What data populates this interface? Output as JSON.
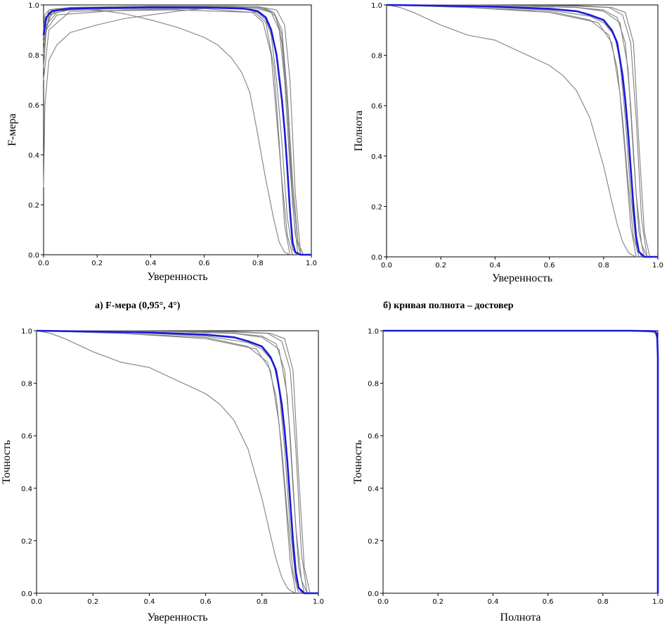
{
  "figure": {
    "captions": [
      "а) F-мера (0,95°, 4°)",
      "б) кривая полнота – достовер"
    ]
  },
  "chart_data": [
    {
      "type": "line",
      "panel": "top-left",
      "xlabel": "Уверенность",
      "ylabel": "F-мера",
      "xlim": [
        0,
        1
      ],
      "ylim": [
        0,
        1
      ],
      "xticks": [
        "0.0",
        "0.2",
        "0.4",
        "0.6",
        "0.8",
        "1.0"
      ],
      "yticks": [
        "0.0",
        "0.2",
        "0.4",
        "0.6",
        "0.8",
        "1.0"
      ],
      "grid": false,
      "mean_color": "#1a1adb",
      "run_color": "#808080",
      "series": [
        {
          "role": "mean",
          "x": [
            0,
            0.01,
            0.03,
            0.06,
            0.1,
            0.2,
            0.4,
            0.6,
            0.75,
            0.8,
            0.83,
            0.85,
            0.87,
            0.89,
            0.9,
            0.91,
            0.92,
            0.93,
            0.94,
            0.96,
            1.0
          ],
          "y": [
            0.88,
            0.95,
            0.975,
            0.98,
            0.985,
            0.988,
            0.99,
            0.99,
            0.985,
            0.975,
            0.95,
            0.9,
            0.8,
            0.62,
            0.5,
            0.35,
            0.18,
            0.05,
            0.01,
            0,
            0
          ]
        },
        {
          "role": "run",
          "x": [
            0,
            0.01,
            0.05,
            0.1,
            0.3,
            0.6,
            0.75,
            0.8,
            0.83,
            0.85,
            0.87,
            0.89,
            0.91,
            0.93,
            0.95
          ],
          "y": [
            0.8,
            0.92,
            0.97,
            0.98,
            0.985,
            0.988,
            0.985,
            0.97,
            0.94,
            0.88,
            0.7,
            0.45,
            0.15,
            0.02,
            0
          ]
        },
        {
          "role": "run",
          "x": [
            0,
            0.02,
            0.05,
            0.1,
            0.4,
            0.7,
            0.8,
            0.84,
            0.87,
            0.89,
            0.91,
            0.93,
            0.95,
            0.97
          ],
          "y": [
            0.85,
            0.95,
            0.98,
            0.99,
            0.993,
            0.993,
            0.99,
            0.98,
            0.95,
            0.85,
            0.6,
            0.25,
            0.05,
            0
          ]
        },
        {
          "role": "run",
          "x": [
            0,
            0.02,
            0.1,
            0.4,
            0.7,
            0.82,
            0.86,
            0.89,
            0.91,
            0.93,
            0.95,
            0.97
          ],
          "y": [
            0.9,
            0.97,
            0.99,
            0.995,
            0.995,
            0.99,
            0.97,
            0.9,
            0.65,
            0.3,
            0.05,
            0
          ]
        },
        {
          "role": "run",
          "x": [
            0,
            0.01,
            0.05,
            0.3,
            0.6,
            0.78,
            0.82,
            0.85,
            0.87,
            0.89,
            0.91,
            0.93
          ],
          "y": [
            0.75,
            0.9,
            0.96,
            0.98,
            0.985,
            0.97,
            0.93,
            0.8,
            0.55,
            0.3,
            0.08,
            0
          ]
        },
        {
          "role": "run",
          "x": [
            0,
            0.02,
            0.1,
            0.5,
            0.8,
            0.85,
            0.88,
            0.9,
            0.92,
            0.94,
            0.96
          ],
          "y": [
            0.82,
            0.96,
            0.985,
            0.99,
            0.985,
            0.97,
            0.9,
            0.7,
            0.35,
            0.08,
            0
          ]
        },
        {
          "role": "run",
          "x": [
            0,
            0.03,
            0.1,
            0.5,
            0.8,
            0.86,
            0.89,
            0.91,
            0.93,
            0.95
          ],
          "y": [
            0.87,
            0.97,
            0.99,
            0.993,
            0.99,
            0.97,
            0.88,
            0.6,
            0.2,
            0
          ]
        },
        {
          "role": "run",
          "x": [
            0,
            0.02,
            0.1,
            0.5,
            0.79,
            0.83,
            0.86,
            0.88,
            0.9,
            0.92
          ],
          "y": [
            0.7,
            0.9,
            0.975,
            0.98,
            0.97,
            0.93,
            0.75,
            0.45,
            0.12,
            0
          ]
        },
        {
          "role": "run",
          "x": [
            0,
            0.02,
            0.1,
            0.4,
            0.8,
            0.87,
            0.9,
            0.92,
            0.94,
            0.96
          ],
          "y": [
            0.9,
            0.98,
            0.99,
            0.995,
            0.993,
            0.98,
            0.92,
            0.7,
            0.25,
            0
          ]
        },
        {
          "role": "run",
          "x": [
            0,
            0.005,
            0.02,
            0.05,
            0.1,
            0.2,
            0.3,
            0.4,
            0.5,
            0.55,
            0.6,
            0.65,
            0.7,
            0.73
          ],
          "y": [
            0.27,
            0.6,
            0.78,
            0.84,
            0.89,
            0.92,
            0.945,
            0.96,
            0.975,
            0.98,
            0.985,
            0.99,
            0.99,
            0.99
          ]
        },
        {
          "role": "run",
          "x": [
            0,
            0.005,
            0.02,
            0.05,
            0.1,
            0.2,
            0.3,
            0.4,
            0.5,
            0.6,
            0.65,
            0.7,
            0.74,
            0.77,
            0.8,
            0.83,
            0.86,
            0.88,
            0.9,
            0.92
          ],
          "y": [
            0.9,
            0.96,
            0.98,
            0.985,
            0.985,
            0.98,
            0.965,
            0.94,
            0.91,
            0.87,
            0.84,
            0.79,
            0.73,
            0.65,
            0.48,
            0.3,
            0.14,
            0.05,
            0.01,
            0
          ]
        }
      ]
    },
    {
      "type": "line",
      "panel": "top-right",
      "xlabel": "Уверенность",
      "ylabel": "Полнота",
      "xlim": [
        0,
        1
      ],
      "ylim": [
        0,
        1
      ],
      "xticks": [
        "0.0",
        "0.2",
        "0.4",
        "0.6",
        "0.8",
        "1.0"
      ],
      "yticks": [
        "0.0",
        "0.2",
        "0.4",
        "0.6",
        "0.8",
        "1.0"
      ],
      "grid": false,
      "mean_color": "#1a1adb",
      "run_color": "#808080",
      "series": [
        {
          "role": "mean",
          "x": [
            0,
            0.2,
            0.4,
            0.6,
            0.7,
            0.75,
            0.8,
            0.83,
            0.85,
            0.87,
            0.88,
            0.89,
            0.9,
            0.91,
            0.92,
            0.93,
            0.95,
            1.0
          ],
          "y": [
            1.0,
            0.997,
            0.993,
            0.985,
            0.975,
            0.96,
            0.94,
            0.9,
            0.85,
            0.72,
            0.62,
            0.5,
            0.35,
            0.2,
            0.08,
            0.02,
            0,
            0
          ]
        },
        {
          "role": "run",
          "x": [
            0,
            0.3,
            0.6,
            0.75,
            0.8,
            0.84,
            0.86,
            0.88,
            0.9,
            0.92,
            0.94
          ],
          "y": [
            1.0,
            0.995,
            0.98,
            0.955,
            0.93,
            0.88,
            0.78,
            0.55,
            0.25,
            0.05,
            0
          ]
        },
        {
          "role": "run",
          "x": [
            0,
            0.4,
            0.7,
            0.8,
            0.85,
            0.88,
            0.9,
            0.92,
            0.94,
            0.96
          ],
          "y": [
            1.0,
            0.998,
            0.99,
            0.98,
            0.95,
            0.85,
            0.6,
            0.25,
            0.05,
            0
          ]
        },
        {
          "role": "run",
          "x": [
            0,
            0.4,
            0.7,
            0.82,
            0.87,
            0.9,
            0.92,
            0.94,
            0.96
          ],
          "y": [
            1.0,
            0.999,
            0.995,
            0.99,
            0.96,
            0.85,
            0.55,
            0.15,
            0
          ]
        },
        {
          "role": "run",
          "x": [
            0,
            0.3,
            0.6,
            0.75,
            0.82,
            0.85,
            0.87,
            0.89,
            0.91,
            0.93
          ],
          "y": [
            1.0,
            0.99,
            0.975,
            0.94,
            0.88,
            0.75,
            0.55,
            0.3,
            0.08,
            0
          ]
        },
        {
          "role": "run",
          "x": [
            0,
            0.4,
            0.7,
            0.83,
            0.88,
            0.91,
            0.93,
            0.95,
            0.97
          ],
          "y": [
            1.0,
            0.999,
            0.997,
            0.99,
            0.97,
            0.85,
            0.45,
            0.1,
            0
          ]
        },
        {
          "role": "run",
          "x": [
            0,
            0.3,
            0.6,
            0.78,
            0.83,
            0.86,
            0.88,
            0.9,
            0.92
          ],
          "y": [
            1.0,
            0.99,
            0.97,
            0.93,
            0.85,
            0.65,
            0.4,
            0.12,
            0
          ]
        },
        {
          "role": "run",
          "x": [
            0,
            0.4,
            0.7,
            0.8,
            0.86,
            0.89,
            0.91,
            0.93,
            0.95
          ],
          "y": [
            1.0,
            0.998,
            0.99,
            0.975,
            0.93,
            0.75,
            0.4,
            0.1,
            0
          ]
        },
        {
          "role": "run",
          "x": [
            0,
            0.05,
            0.1,
            0.2,
            0.3,
            0.4,
            0.5,
            0.6,
            0.65,
            0.7,
            0.75,
            0.8,
            0.83,
            0.85,
            0.87,
            0.89,
            0.9,
            0.92
          ],
          "y": [
            1.0,
            0.99,
            0.97,
            0.92,
            0.88,
            0.86,
            0.81,
            0.76,
            0.72,
            0.66,
            0.55,
            0.36,
            0.22,
            0.13,
            0.06,
            0.02,
            0.01,
            0
          ]
        }
      ]
    },
    {
      "type": "line",
      "panel": "bottom-left",
      "xlabel": "Уверенность",
      "ylabel": "Точность",
      "xlim": [
        0,
        1
      ],
      "ylim": [
        0,
        1
      ],
      "xticks": [
        "0.0",
        "0.2",
        "0.4",
        "0.6",
        "0.8",
        "1.0"
      ],
      "yticks": [
        "0.0",
        "0.2",
        "0.4",
        "0.6",
        "0.8",
        "1.0"
      ],
      "grid": false,
      "mean_color": "#1a1adb",
      "run_color": "#808080",
      "series": [
        {
          "role": "mean",
          "x": [
            0,
            0.2,
            0.4,
            0.6,
            0.7,
            0.75,
            0.8,
            0.83,
            0.85,
            0.87,
            0.88,
            0.89,
            0.9,
            0.91,
            0.92,
            0.93,
            0.95,
            1.0
          ],
          "y": [
            1.0,
            0.997,
            0.993,
            0.985,
            0.975,
            0.96,
            0.94,
            0.9,
            0.85,
            0.72,
            0.62,
            0.5,
            0.35,
            0.2,
            0.08,
            0.02,
            0,
            0
          ]
        },
        {
          "role": "run",
          "x": [
            0,
            0.3,
            0.6,
            0.75,
            0.8,
            0.84,
            0.86,
            0.88,
            0.9,
            0.92,
            0.94
          ],
          "y": [
            1.0,
            0.995,
            0.98,
            0.955,
            0.93,
            0.88,
            0.78,
            0.55,
            0.25,
            0.05,
            0
          ]
        },
        {
          "role": "run",
          "x": [
            0,
            0.4,
            0.7,
            0.8,
            0.85,
            0.88,
            0.9,
            0.92,
            0.94,
            0.96
          ],
          "y": [
            1.0,
            0.998,
            0.99,
            0.98,
            0.95,
            0.85,
            0.6,
            0.25,
            0.05,
            0
          ]
        },
        {
          "role": "run",
          "x": [
            0,
            0.4,
            0.7,
            0.82,
            0.87,
            0.9,
            0.92,
            0.94,
            0.96
          ],
          "y": [
            1.0,
            0.999,
            0.995,
            0.99,
            0.96,
            0.85,
            0.55,
            0.15,
            0
          ]
        },
        {
          "role": "run",
          "x": [
            0,
            0.3,
            0.6,
            0.75,
            0.82,
            0.85,
            0.87,
            0.89,
            0.91,
            0.93
          ],
          "y": [
            1.0,
            0.99,
            0.975,
            0.94,
            0.88,
            0.75,
            0.55,
            0.3,
            0.08,
            0
          ]
        },
        {
          "role": "run",
          "x": [
            0,
            0.4,
            0.7,
            0.83,
            0.88,
            0.91,
            0.93,
            0.95,
            0.97
          ],
          "y": [
            1.0,
            0.999,
            0.997,
            0.99,
            0.97,
            0.85,
            0.45,
            0.1,
            0
          ]
        },
        {
          "role": "run",
          "x": [
            0,
            0.3,
            0.6,
            0.78,
            0.83,
            0.86,
            0.88,
            0.9,
            0.92
          ],
          "y": [
            1.0,
            0.99,
            0.97,
            0.93,
            0.85,
            0.65,
            0.4,
            0.12,
            0
          ]
        },
        {
          "role": "run",
          "x": [
            0,
            0.4,
            0.7,
            0.8,
            0.86,
            0.89,
            0.91,
            0.93,
            0.95
          ],
          "y": [
            1.0,
            0.998,
            0.99,
            0.975,
            0.93,
            0.75,
            0.4,
            0.1,
            0
          ]
        },
        {
          "role": "run",
          "x": [
            0,
            0.05,
            0.1,
            0.2,
            0.3,
            0.4,
            0.5,
            0.6,
            0.65,
            0.7,
            0.75,
            0.8,
            0.83,
            0.85,
            0.87,
            0.89,
            0.9,
            0.92
          ],
          "y": [
            1.0,
            0.99,
            0.97,
            0.92,
            0.88,
            0.86,
            0.81,
            0.76,
            0.72,
            0.66,
            0.55,
            0.36,
            0.22,
            0.13,
            0.06,
            0.02,
            0.01,
            0
          ]
        }
      ]
    },
    {
      "type": "line",
      "panel": "bottom-right",
      "xlabel": "Полнота",
      "ylabel": "Точность",
      "xlim": [
        0,
        1
      ],
      "ylim": [
        0,
        1
      ],
      "xticks": [
        "0.0",
        "0.2",
        "0.4",
        "0.6",
        "0.8",
        "1.0"
      ],
      "yticks": [
        "0.0",
        "0.2",
        "0.4",
        "0.6",
        "0.8",
        "1.0"
      ],
      "grid": false,
      "mean_color": "#1a1adb",
      "run_color": "#808080",
      "series": [
        {
          "role": "run",
          "x": [
            0,
            0.5,
            0.9,
            0.95,
            0.98,
            0.99,
            0.995,
            1.0
          ],
          "y": [
            1.0,
            1.0,
            0.999,
            0.997,
            0.995,
            0.99,
            0.98,
            0.95
          ]
        },
        {
          "role": "mean",
          "x": [
            0,
            0.5,
            0.9,
            0.97,
            0.99,
            0.995,
            0.998,
            1.0,
            1.0
          ],
          "y": [
            1.0,
            1.0,
            1.0,
            0.999,
            0.998,
            0.99,
            0.97,
            0.9,
            0
          ]
        }
      ]
    }
  ]
}
